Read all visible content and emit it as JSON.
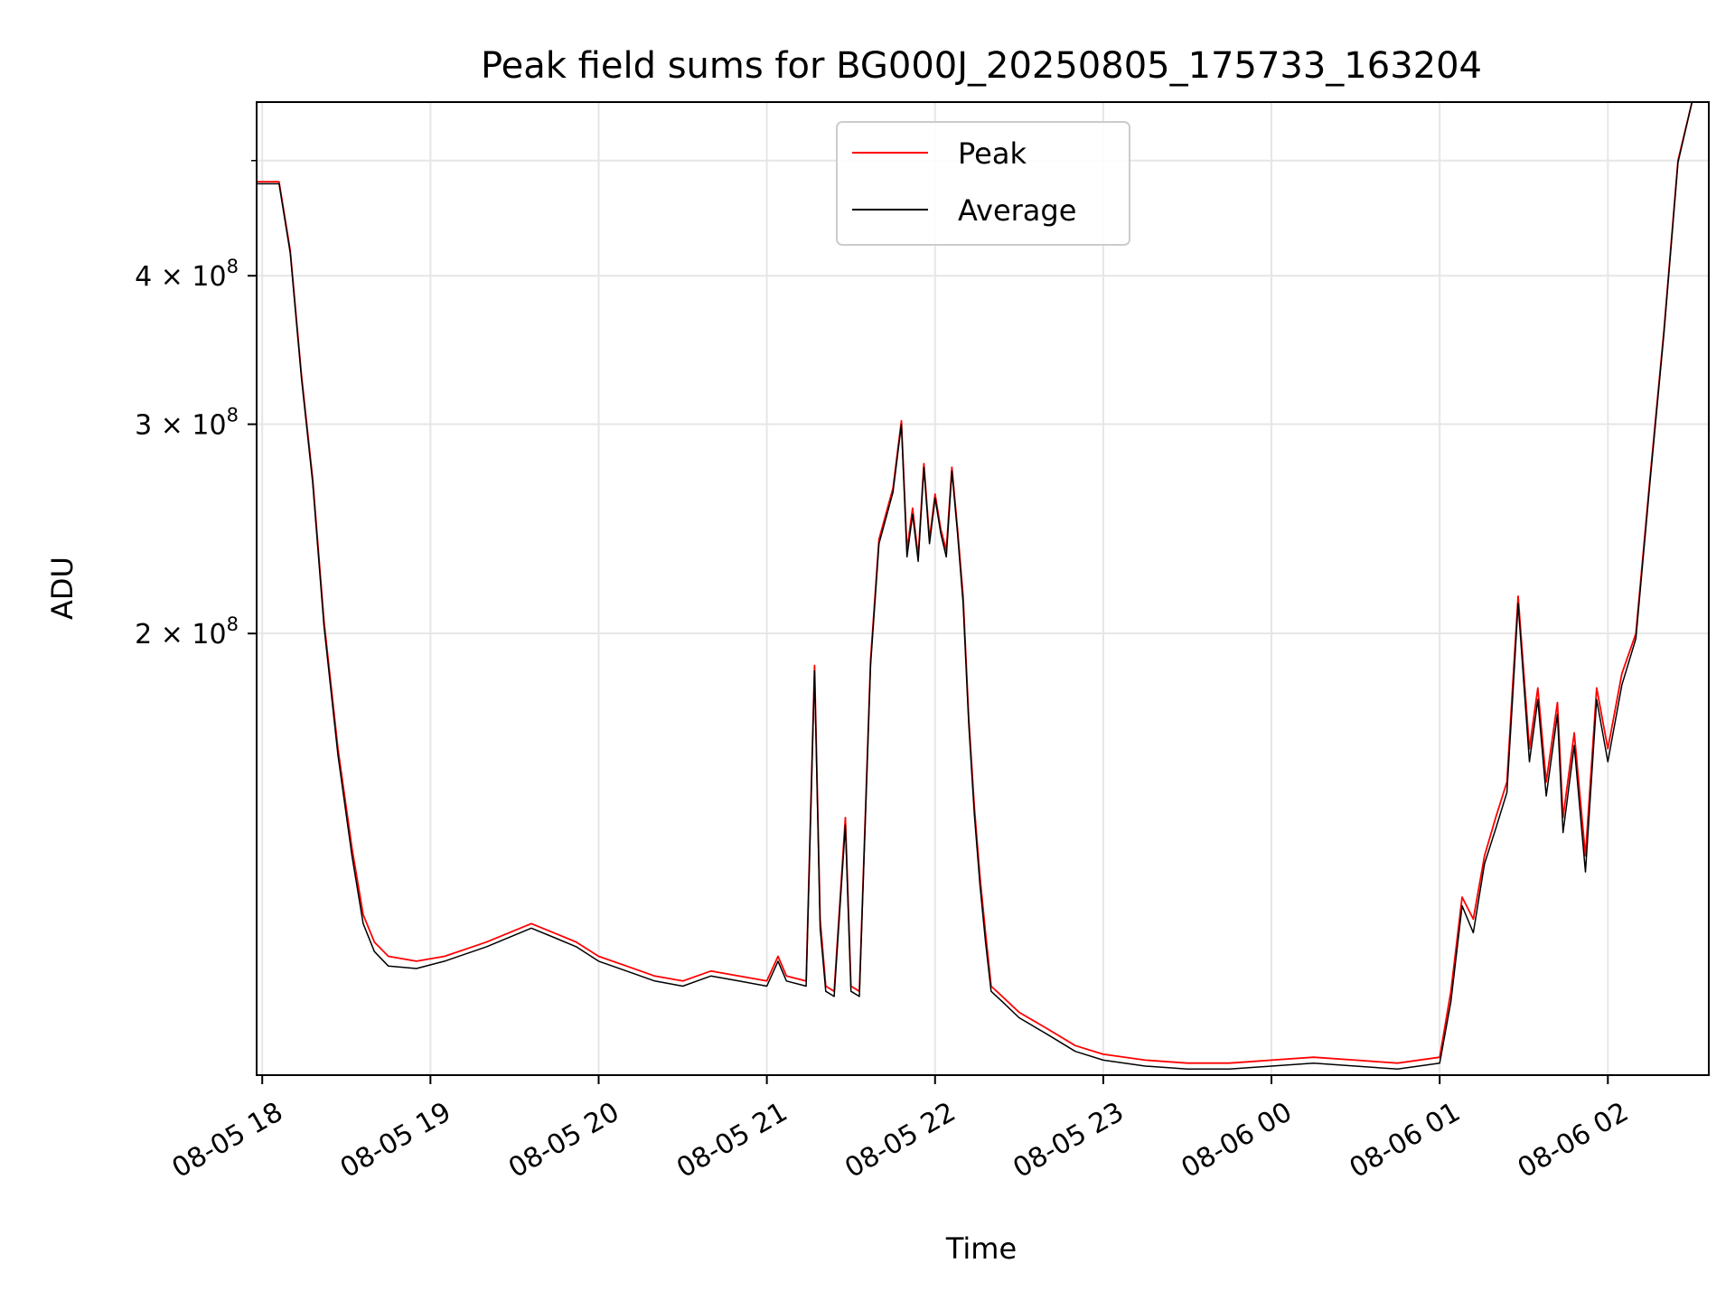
{
  "chart_data": {
    "type": "line",
    "title": "Peak field sums for BG000J_20250805_175733_163204",
    "xlabel": "Time",
    "ylabel": "ADU",
    "y_scale": "log",
    "grid": true,
    "legend_placement": "upper center",
    "xlim": [
      "2025-08-05 17:58",
      "2025-08-06 02:36"
    ],
    "ylim": [
      85000000,
      560000000
    ],
    "x_ticks": [
      "08-05 18",
      "08-05 19",
      "08-05 20",
      "08-05 21",
      "08-05 22",
      "08-05 23",
      "08-06 00",
      "08-06 01",
      "08-06 02"
    ],
    "y_ticks": [
      {
        "value": 200000000,
        "mantissa": "2",
        "exponent": "8"
      },
      {
        "value": 300000000,
        "mantissa": "3",
        "exponent": "8"
      },
      {
        "value": 400000000,
        "mantissa": "4",
        "exponent": "8"
      }
    ],
    "series": [
      {
        "name": "Peak",
        "color": "#ff0000",
        "x": [
          "2025-08-05 17:58",
          "2025-08-05 18:06",
          "2025-08-05 18:10",
          "2025-08-05 18:14",
          "2025-08-05 18:18",
          "2025-08-05 18:22",
          "2025-08-05 18:27",
          "2025-08-05 18:32",
          "2025-08-05 18:36",
          "2025-08-05 18:40",
          "2025-08-05 18:45",
          "2025-08-05 18:55",
          "2025-08-05 19:05",
          "2025-08-05 19:20",
          "2025-08-05 19:36",
          "2025-08-05 19:44",
          "2025-08-05 19:52",
          "2025-08-05 20:00",
          "2025-08-05 20:10",
          "2025-08-05 20:20",
          "2025-08-05 20:30",
          "2025-08-05 20:40",
          "2025-08-05 20:50",
          "2025-08-05 21:00",
          "2025-08-05 21:04",
          "2025-08-05 21:07",
          "2025-08-05 21:14",
          "2025-08-05 21:17",
          "2025-08-05 21:19",
          "2025-08-05 21:21",
          "2025-08-05 21:24",
          "2025-08-05 21:28",
          "2025-08-05 21:30",
          "2025-08-05 21:33",
          "2025-08-05 21:37",
          "2025-08-05 21:40",
          "2025-08-05 21:45",
          "2025-08-05 21:48",
          "2025-08-05 21:50",
          "2025-08-05 21:52",
          "2025-08-05 21:54",
          "2025-08-05 21:56",
          "2025-08-05 21:58",
          "2025-08-05 22:00",
          "2025-08-05 22:02",
          "2025-08-05 22:04",
          "2025-08-05 22:06",
          "2025-08-05 22:08",
          "2025-08-05 22:10",
          "2025-08-05 22:12",
          "2025-08-05 22:14",
          "2025-08-05 22:16",
          "2025-08-05 22:18",
          "2025-08-05 22:20",
          "2025-08-05 22:24",
          "2025-08-05 22:30",
          "2025-08-05 22:40",
          "2025-08-05 22:50",
          "2025-08-05 23:00",
          "2025-08-05 23:15",
          "2025-08-05 23:30",
          "2025-08-05 23:45",
          "2025-08-06 00:00",
          "2025-08-06 00:15",
          "2025-08-06 00:30",
          "2025-08-06 00:45",
          "2025-08-06 01:00",
          "2025-08-06 01:04",
          "2025-08-06 01:08",
          "2025-08-06 01:12",
          "2025-08-06 01:16",
          "2025-08-06 01:20",
          "2025-08-06 01:24",
          "2025-08-06 01:26",
          "2025-08-06 01:28",
          "2025-08-06 01:32",
          "2025-08-06 01:35",
          "2025-08-06 01:38",
          "2025-08-06 01:42",
          "2025-08-06 01:44",
          "2025-08-06 01:48",
          "2025-08-06 01:52",
          "2025-08-06 01:56",
          "2025-08-06 02:00",
          "2025-08-06 02:05",
          "2025-08-06 02:10",
          "2025-08-06 02:15",
          "2025-08-06 02:20",
          "2025-08-06 02:25",
          "2025-08-06 02:30",
          "2025-08-06 02:36"
        ],
        "y": [
          480000000,
          480000000,
          420000000,
          330000000,
          270000000,
          205000000,
          160000000,
          132000000,
          116000000,
          110000000,
          107000000,
          106000000,
          107000000,
          110000000,
          114000000,
          112000000,
          110000000,
          107000000,
          105000000,
          103000000,
          102000000,
          104000000,
          103000000,
          102000000,
          107000000,
          103000000,
          102000000,
          188000000,
          115000000,
          101000000,
          100000000,
          140000000,
          101000000,
          100000000,
          190000000,
          240000000,
          265000000,
          302000000,
          235000000,
          255000000,
          232000000,
          278000000,
          240000000,
          262000000,
          245000000,
          235000000,
          276000000,
          245000000,
          215000000,
          170000000,
          143000000,
          125000000,
          112000000,
          101000000,
          99000000,
          96000000,
          93000000,
          90000000,
          88500000,
          87500000,
          87000000,
          87000000,
          87500000,
          88000000,
          87500000,
          87000000,
          88000000,
          100000000,
          120000000,
          115000000,
          130000000,
          140000000,
          150000000,
          180000000,
          215000000,
          160000000,
          180000000,
          150000000,
          175000000,
          140000000,
          165000000,
          130000000,
          180000000,
          160000000,
          185000000,
          200000000,
          270000000,
          360000000,
          500000000,
          560000000,
          560000000
        ]
      },
      {
        "name": "Average",
        "color": "#000000",
        "x": [
          "2025-08-05 17:58",
          "2025-08-05 18:06",
          "2025-08-05 18:10",
          "2025-08-05 18:14",
          "2025-08-05 18:18",
          "2025-08-05 18:22",
          "2025-08-05 18:27",
          "2025-08-05 18:32",
          "2025-08-05 18:36",
          "2025-08-05 18:40",
          "2025-08-05 18:45",
          "2025-08-05 18:55",
          "2025-08-05 19:05",
          "2025-08-05 19:20",
          "2025-08-05 19:36",
          "2025-08-05 19:44",
          "2025-08-05 19:52",
          "2025-08-05 20:00",
          "2025-08-05 20:10",
          "2025-08-05 20:20",
          "2025-08-05 20:30",
          "2025-08-05 20:40",
          "2025-08-05 20:50",
          "2025-08-05 21:00",
          "2025-08-05 21:04",
          "2025-08-05 21:07",
          "2025-08-05 21:14",
          "2025-08-05 21:17",
          "2025-08-05 21:19",
          "2025-08-05 21:21",
          "2025-08-05 21:24",
          "2025-08-05 21:28",
          "2025-08-05 21:30",
          "2025-08-05 21:33",
          "2025-08-05 21:37",
          "2025-08-05 21:40",
          "2025-08-05 21:45",
          "2025-08-05 21:48",
          "2025-08-05 21:50",
          "2025-08-05 21:52",
          "2025-08-05 21:54",
          "2025-08-05 21:56",
          "2025-08-05 21:58",
          "2025-08-05 22:00",
          "2025-08-05 22:02",
          "2025-08-05 22:04",
          "2025-08-05 22:06",
          "2025-08-05 22:08",
          "2025-08-05 22:10",
          "2025-08-05 22:12",
          "2025-08-05 22:14",
          "2025-08-05 22:16",
          "2025-08-05 22:18",
          "2025-08-05 22:20",
          "2025-08-05 22:24",
          "2025-08-05 22:30",
          "2025-08-05 22:40",
          "2025-08-05 22:50",
          "2025-08-05 23:00",
          "2025-08-05 23:15",
          "2025-08-05 23:30",
          "2025-08-05 23:45",
          "2025-08-06 00:00",
          "2025-08-06 00:15",
          "2025-08-06 00:30",
          "2025-08-06 00:45",
          "2025-08-06 01:00",
          "2025-08-06 01:04",
          "2025-08-06 01:08",
          "2025-08-06 01:12",
          "2025-08-06 01:16",
          "2025-08-06 01:20",
          "2025-08-06 01:24",
          "2025-08-06 01:26",
          "2025-08-06 01:28",
          "2025-08-06 01:32",
          "2025-08-06 01:35",
          "2025-08-06 01:38",
          "2025-08-06 01:42",
          "2025-08-06 01:44",
          "2025-08-06 01:48",
          "2025-08-06 01:52",
          "2025-08-06 01:56",
          "2025-08-06 02:00",
          "2025-08-06 02:05",
          "2025-08-06 02:10",
          "2025-08-06 02:15",
          "2025-08-06 02:20",
          "2025-08-06 02:25",
          "2025-08-06 02:30",
          "2025-08-06 02:36"
        ],
        "y": [
          478000000,
          478000000,
          418000000,
          328000000,
          268000000,
          203000000,
          158000000,
          130000000,
          114000000,
          108000000,
          105000000,
          104500000,
          106000000,
          109000000,
          113000000,
          111000000,
          109000000,
          106000000,
          104000000,
          102000000,
          101000000,
          103000000,
          102000000,
          101000000,
          106000000,
          102000000,
          101000000,
          186000000,
          113000000,
          100000000,
          99000000,
          138000000,
          100000000,
          99000000,
          188000000,
          238000000,
          263000000,
          300000000,
          232000000,
          252000000,
          230000000,
          276000000,
          238000000,
          260000000,
          243000000,
          232000000,
          274000000,
          243000000,
          212000000,
          168000000,
          141000000,
          123000000,
          110000000,
          100000000,
          98000000,
          95000000,
          92000000,
          89000000,
          87500000,
          86500000,
          86000000,
          86000000,
          86500000,
          87000000,
          86500000,
          86000000,
          87000000,
          98000000,
          118000000,
          112000000,
          128000000,
          137000000,
          147000000,
          176000000,
          212000000,
          156000000,
          176000000,
          146000000,
          171000000,
          136000000,
          161000000,
          126000000,
          176000000,
          156000000,
          181000000,
          198000000,
          268000000,
          358000000,
          498000000,
          560000000,
          560000000
        ]
      }
    ]
  }
}
